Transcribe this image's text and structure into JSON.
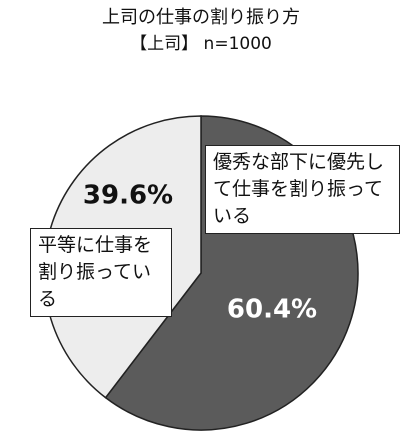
{
  "chart_data": {
    "type": "pie",
    "title": "上司の仕事の割り振り方",
    "subtitle": "【上司】 n=1000",
    "categories": [
      "優秀な部下に優先して仕事を割り振っている",
      "平等に仕事を割り振っている"
    ],
    "values": [
      60.4,
      39.6
    ],
    "value_labels": [
      "60.4%",
      "39.6%"
    ],
    "colors": [
      "#5b5b5b",
      "#ededed"
    ],
    "value_label_colors": [
      "#ffffff",
      "#111111"
    ]
  }
}
